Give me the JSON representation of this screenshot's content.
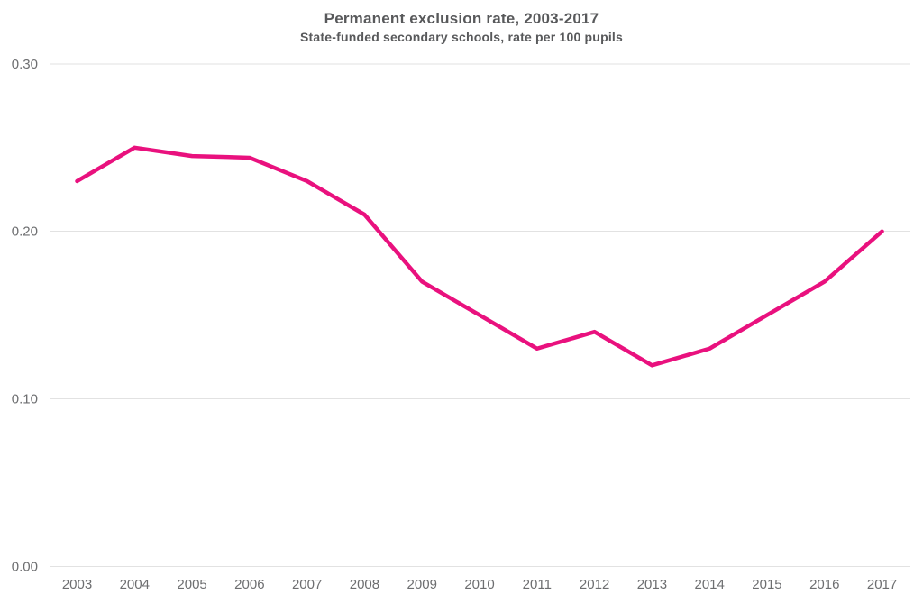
{
  "chart_data": {
    "type": "line",
    "title": "Permanent exclusion rate, 2003-2017",
    "subtitle": "State-funded secondary schools, rate per 100 pupils",
    "categories": [
      "2003",
      "2004",
      "2005",
      "2006",
      "2007",
      "2008",
      "2009",
      "2010",
      "2011",
      "2012",
      "2013",
      "2014",
      "2015",
      "2016",
      "2017"
    ],
    "series": [
      {
        "name": "Permanent exclusion rate per 100 pupils",
        "values": [
          0.23,
          0.25,
          0.245,
          0.244,
          0.23,
          0.21,
          0.17,
          0.15,
          0.13,
          0.14,
          0.12,
          0.13,
          0.15,
          0.17,
          0.2
        ],
        "color": "#e9117e"
      }
    ],
    "xlabel": "",
    "ylabel": "",
    "ylim": [
      0,
      0.3
    ],
    "yticks": [
      0.0,
      0.1,
      0.2,
      0.3
    ],
    "ytick_labels": [
      "0.00",
      "0.10",
      "0.20",
      "0.30"
    ],
    "grid": "horizontal-only",
    "legend": "none",
    "markers": "none",
    "colors": {
      "line": "#e9117e",
      "grid": "#e2e2e2",
      "tick_text": "#6d6e70",
      "title_text": "#58595b",
      "background": "#ffffff"
    }
  }
}
